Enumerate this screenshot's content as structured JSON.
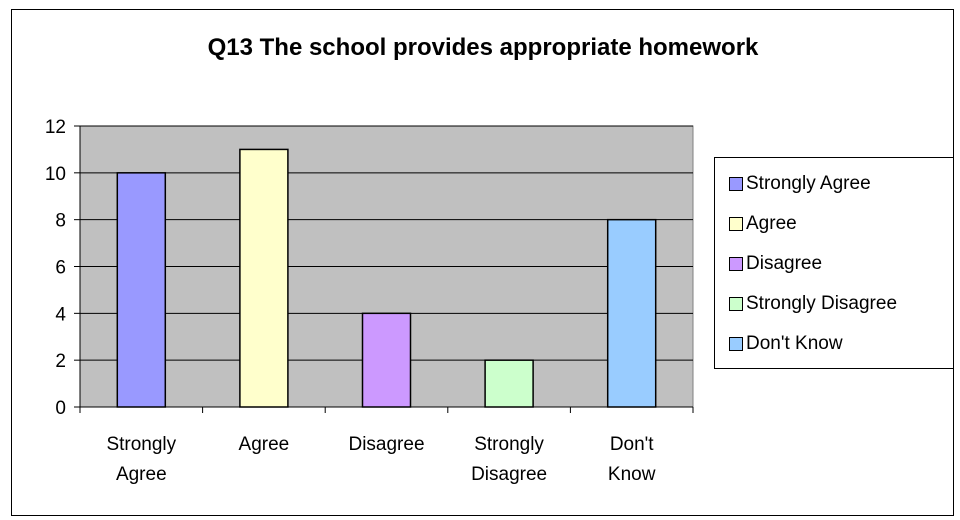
{
  "chart_data": {
    "type": "bar",
    "title": "Q13 The school provides appropriate homework",
    "xlabel": "",
    "ylabel": "",
    "ylim": [
      0,
      12
    ],
    "y_ticks": [
      0,
      2,
      4,
      6,
      8,
      10,
      12
    ],
    "grid": true,
    "legend_position": "right",
    "categories": [
      [
        "Strongly",
        "Agree"
      ],
      [
        "Agree"
      ],
      [
        "Disagree"
      ],
      [
        "Strongly",
        "Disagree"
      ],
      [
        "Don't",
        "Know"
      ]
    ],
    "values": [
      10,
      11,
      4,
      2,
      8
    ],
    "colors": [
      "#9999ff",
      "#ffffcc",
      "#cc99ff",
      "#ccffcc",
      "#99ccff"
    ],
    "legend": [
      "Strongly Agree",
      "Agree",
      "Disagree",
      "Strongly Disagree",
      "Don't Know"
    ],
    "plot_background": "#c0c0c0"
  }
}
